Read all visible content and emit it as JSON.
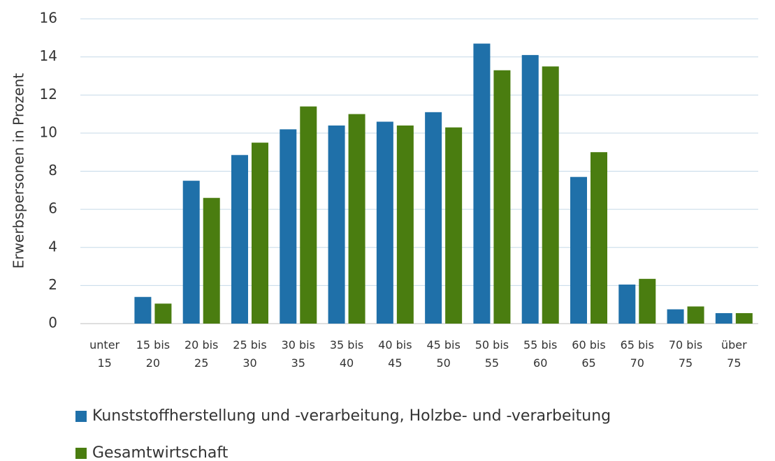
{
  "chart_data": {
    "type": "bar",
    "y_label": "Erwerbspersonen in Prozent",
    "categories": [
      "unter\n15",
      "15 bis\n20",
      "20 bis\n25",
      "25 bis\n30",
      "30 bis\n35",
      "35 bis\n40",
      "40 bis\n45",
      "45 bis\n50",
      "50 bis\n55",
      "55 bis\n60",
      "60 bis\n65",
      "65 bis\n70",
      "70 bis\n75",
      "über\n75"
    ],
    "series": [
      {
        "name": "Kunststoffherstellung und -verarbeitung, Holzbe- und -verarbeitung",
        "color": "#1f70a9",
        "values": [
          0,
          1.4,
          7.5,
          8.85,
          10.2,
          10.4,
          10.6,
          11.1,
          14.7,
          14.1,
          7.7,
          2.05,
          0.75,
          0.55
        ]
      },
      {
        "name": "Gesamtwirtschaft",
        "color": "#4a7d10",
        "values": [
          0,
          1.05,
          6.6,
          9.5,
          11.4,
          11.0,
          10.4,
          10.3,
          13.3,
          13.5,
          9.0,
          2.35,
          0.9,
          0.55
        ]
      }
    ],
    "ylim": [
      0,
      16
    ],
    "yticks": [
      0,
      2,
      4,
      6,
      8,
      10,
      12,
      14,
      16
    ],
    "grid": true,
    "legend": "bottom"
  }
}
